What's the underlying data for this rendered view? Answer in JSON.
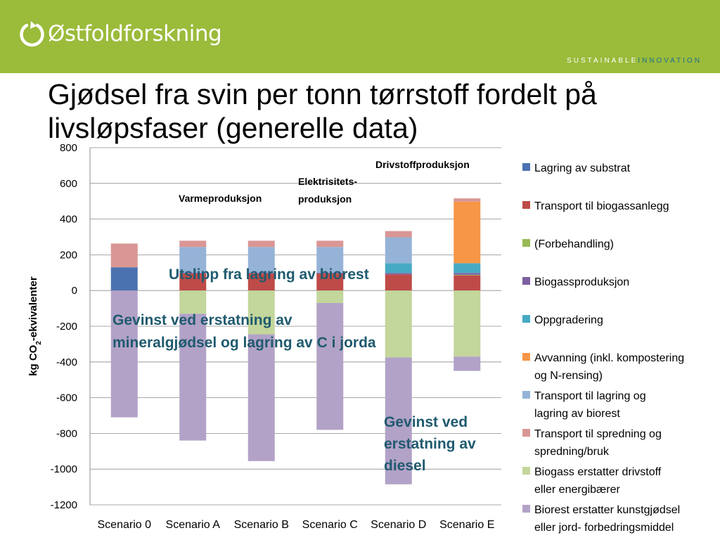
{
  "header": {
    "logo_text": "Østfoldforskning",
    "tagline_a": "SUSTAINABLE",
    "tagline_b": "INNOVATION",
    "bg_color": "#9bbb3b"
  },
  "title": "Gjødsel fra svin per tonn tørrstoff fordelt på livsløpsfaser (generelle data)",
  "chart_data": {
    "type": "bar",
    "stacked": true,
    "categories": [
      "Scenario 0",
      "Scenario A",
      "Scenario B",
      "Scenario C",
      "Scenario D",
      "Scenario E"
    ],
    "ylabel": "kg CO2-ekvivalenter",
    "ylim": [
      -1200,
      800
    ],
    "yticks": [
      800,
      600,
      400,
      200,
      0,
      -200,
      -400,
      -600,
      -800,
      -1000,
      -1200
    ],
    "grid": true,
    "legend_position": "right",
    "series": [
      {
        "name": "Lagring av substrat",
        "color": "#4a72b0",
        "values": [
          130,
          0,
          0,
          0,
          0,
          0
        ]
      },
      {
        "name": "Transport til biogassanlegg",
        "color": "#be4b48",
        "values": [
          0,
          95,
          95,
          95,
          90,
          85
        ]
      },
      {
        "name": "(Forbehandling)",
        "color": "#98b954",
        "values": [
          0,
          0,
          0,
          0,
          0,
          3
        ]
      },
      {
        "name": "Biogassproduksjon",
        "color": "#7d60a0",
        "values": [
          0,
          4,
          4,
          4,
          8,
          10
        ]
      },
      {
        "name": "Oppgradering",
        "color": "#46aac4",
        "values": [
          0,
          0,
          0,
          0,
          55,
          55
        ]
      },
      {
        "name": "Avvanning (inkl. kompostering og N-rensing)",
        "color": "#f79646",
        "values": [
          0,
          0,
          0,
          0,
          0,
          345
        ]
      },
      {
        "name": "Transport til lagring og lagring av biorest",
        "color": "#95b3d7",
        "values": [
          0,
          145,
          145,
          145,
          145,
          0
        ]
      },
      {
        "name": "Transport til spredning og spredning/bruk",
        "color": "#d99694",
        "values": [
          133,
          35,
          35,
          35,
          35,
          18
        ]
      },
      {
        "name": "Biogass erstatter drivstoff eller energibærer",
        "color": "#c3d69b",
        "values": [
          0,
          -130,
          -245,
          -70,
          -375,
          -370
        ]
      },
      {
        "name": "Biorest erstatter kunstgjødsel eller jord- forbedringsmiddel",
        "color": "#b2a2c7",
        "values": [
          -710,
          -710,
          -710,
          -710,
          -710,
          -80
        ]
      }
    ],
    "annotations": [
      {
        "text": "Varmeproduksjon",
        "style": "label"
      },
      {
        "text": "Elektrisitets-\nproduksjon",
        "style": "label"
      },
      {
        "text": "Drivstoffproduksjon",
        "style": "label"
      },
      {
        "text": "Utslipp fra lagring av biorest",
        "style": "callout"
      },
      {
        "text": "Gevinst ved erstatning av\nmineralgjødsel og lagring av C i jorda",
        "style": "callout"
      },
      {
        "text": "Gevinst ved\nerstatning av\ndiesel",
        "style": "callout"
      }
    ]
  }
}
